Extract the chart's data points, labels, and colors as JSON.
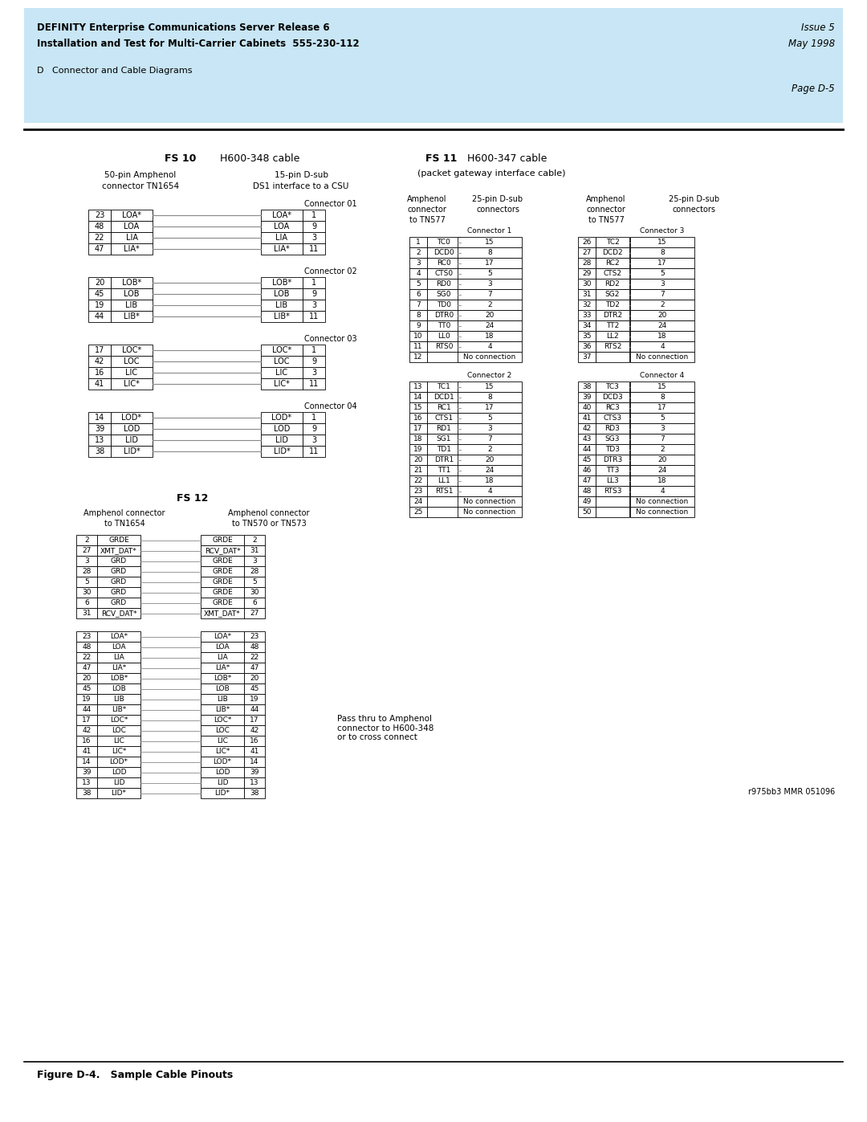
{
  "page_title1": "DEFINITY Enterprise Communications Server Release 6",
  "page_title2": "Installation and Test for Multi-Carrier Cabinets  555-230-112",
  "page_issue": "Issue 5",
  "page_date": "May 1998",
  "section": "D   Connector and Cable Diagrams",
  "page_num": "Page D-5",
  "figure_caption": "Figure D-4.   Sample Cable Pinouts",
  "ref_code": "r975bb3 MMR 051096",
  "header_bg": "#c8e6f5",
  "bg_color": "#ffffff",
  "fs10_title": "FS 10",
  "fs10_subtitle": " H600-348 cable",
  "fs10_left_label1": "50-pin Amphenol",
  "fs10_left_label2": "connector TN1654",
  "fs10_right_label1": "15-pin D-sub",
  "fs10_right_label2": "DS1 interface to a CSU",
  "fs10_conn01_label": "Connector 01",
  "fs10_conn02_label": "Connector 02",
  "fs10_conn03_label": "Connector 03",
  "fs10_conn04_label": "Connector 04",
  "fs10_conn01_rows": [
    [
      "LOA*",
      "1"
    ],
    [
      "LOA",
      "9"
    ],
    [
      "LIA",
      "3"
    ],
    [
      "LIA*",
      "11"
    ]
  ],
  "fs10_conn02_rows": [
    [
      "LOB*",
      "1"
    ],
    [
      "LOB",
      "9"
    ],
    [
      "LIB",
      "3"
    ],
    [
      "LIB*",
      "11"
    ]
  ],
  "fs10_conn03_rows": [
    [
      "LOC*",
      "1"
    ],
    [
      "LOC",
      "9"
    ],
    [
      "LIC",
      "3"
    ],
    [
      "LIC*",
      "11"
    ]
  ],
  "fs10_conn04_rows": [
    [
      "LOD*",
      "1"
    ],
    [
      "LOD",
      "9"
    ],
    [
      "LID",
      "3"
    ],
    [
      "LID*",
      "11"
    ]
  ],
  "fs10_left1_rows": [
    [
      "23",
      "LOA*"
    ],
    [
      "48",
      "LOA"
    ],
    [
      "22",
      "LIA"
    ],
    [
      "47",
      "LIA*"
    ]
  ],
  "fs10_left2_rows": [
    [
      "20",
      "LOB*"
    ],
    [
      "45",
      "LOB"
    ],
    [
      "19",
      "LIB"
    ],
    [
      "44",
      "LIB*"
    ]
  ],
  "fs10_left3_rows": [
    [
      "17",
      "LOC*"
    ],
    [
      "42",
      "LOC"
    ],
    [
      "16",
      "LIC"
    ],
    [
      "41",
      "LIC*"
    ]
  ],
  "fs10_left4_rows": [
    [
      "14",
      "LOD*"
    ],
    [
      "39",
      "LOD"
    ],
    [
      "13",
      "LID"
    ],
    [
      "38",
      "LID*"
    ]
  ],
  "fs11_title": "FS 11",
  "fs11_subtitle": " H600-347 cable",
  "fs11_subtitle2": "(packet gateway interface cable)",
  "fs11_left_label1": "Amphenol",
  "fs11_left_label2": "connector",
  "fs11_left_label3": "to TN577",
  "fs11_mid_label1": "25-pin D-sub",
  "fs11_mid_label2": "connectors",
  "fs11_right_label1": "Amphenol",
  "fs11_right_label2": "connector",
  "fs11_right_label3": "to TN577",
  "fs11_right2_label1": "25-pin D-sub",
  "fs11_right2_label2": "connectors",
  "fs11_conn1_label": "Connector 1",
  "fs11_conn2_label": "Connector 2",
  "fs11_conn3_label": "Connector 3",
  "fs11_conn4_label": "Connector 4",
  "fs11_left1_rows": [
    [
      "1",
      "TC0"
    ],
    [
      "2",
      "DCD0"
    ],
    [
      "3",
      "RC0"
    ],
    [
      "4",
      "CTS0"
    ],
    [
      "5",
      "RD0"
    ],
    [
      "6",
      "SG0"
    ],
    [
      "7",
      "TD0"
    ],
    [
      "8",
      "DTR0"
    ],
    [
      "9",
      "TT0"
    ],
    [
      "10",
      "LL0"
    ],
    [
      "11",
      "RTS0"
    ],
    [
      "12",
      ""
    ]
  ],
  "fs11_conn1_rows": [
    [
      "15"
    ],
    [
      "8"
    ],
    [
      "17"
    ],
    [
      "5"
    ],
    [
      "3"
    ],
    [
      "7"
    ],
    [
      "2"
    ],
    [
      "20"
    ],
    [
      "24"
    ],
    [
      "18"
    ],
    [
      "4"
    ],
    [
      "No connection"
    ]
  ],
  "fs11_left2_rows": [
    [
      "13",
      "TC1"
    ],
    [
      "14",
      "DCD1"
    ],
    [
      "15",
      "RC1"
    ],
    [
      "16",
      "CTS1"
    ],
    [
      "17",
      "RD1"
    ],
    [
      "18",
      "SG1"
    ],
    [
      "19",
      "TD1"
    ],
    [
      "20",
      "DTR1"
    ],
    [
      "21",
      "TT1"
    ],
    [
      "22",
      "LL1"
    ],
    [
      "23",
      "RTS1"
    ],
    [
      "24",
      ""
    ],
    [
      "25",
      ""
    ]
  ],
  "fs11_conn2_rows": [
    [
      "15"
    ],
    [
      "8"
    ],
    [
      "17"
    ],
    [
      "5"
    ],
    [
      "3"
    ],
    [
      "7"
    ],
    [
      "2"
    ],
    [
      "20"
    ],
    [
      "24"
    ],
    [
      "18"
    ],
    [
      "4"
    ],
    [
      "No connection"
    ],
    [
      "No connection"
    ]
  ],
  "fs11_mid1_rows": [
    [
      "26",
      "TC2"
    ],
    [
      "27",
      "DCD2"
    ],
    [
      "28",
      "RC2"
    ],
    [
      "29",
      "CTS2"
    ],
    [
      "30",
      "RD2"
    ],
    [
      "31",
      "SG2"
    ],
    [
      "32",
      "TD2"
    ],
    [
      "33",
      "DTR2"
    ],
    [
      "34",
      "TT2"
    ],
    [
      "35",
      "LL2"
    ],
    [
      "36",
      "RTS2"
    ],
    [
      "37",
      ""
    ]
  ],
  "fs11_conn3_rows": [
    [
      "15"
    ],
    [
      "8"
    ],
    [
      "17"
    ],
    [
      "5"
    ],
    [
      "3"
    ],
    [
      "7"
    ],
    [
      "2"
    ],
    [
      "20"
    ],
    [
      "24"
    ],
    [
      "18"
    ],
    [
      "4"
    ],
    [
      "No connection"
    ]
  ],
  "fs11_mid2_rows": [
    [
      "38",
      "TC3"
    ],
    [
      "39",
      "DCD3"
    ],
    [
      "40",
      "RC3"
    ],
    [
      "41",
      "CTS3"
    ],
    [
      "42",
      "RD3"
    ],
    [
      "43",
      "SG3"
    ],
    [
      "44",
      "TD3"
    ],
    [
      "45",
      "DTR3"
    ],
    [
      "46",
      "TT3"
    ],
    [
      "47",
      "LL3"
    ],
    [
      "48",
      "RTS3"
    ],
    [
      "49",
      ""
    ],
    [
      "50",
      ""
    ]
  ],
  "fs11_conn4_rows": [
    [
      "15"
    ],
    [
      "8"
    ],
    [
      "17"
    ],
    [
      "5"
    ],
    [
      "3"
    ],
    [
      "7"
    ],
    [
      "2"
    ],
    [
      "20"
    ],
    [
      "24"
    ],
    [
      "18"
    ],
    [
      "4"
    ],
    [
      "No connection"
    ],
    [
      "No connection"
    ]
  ],
  "fs12_title": "FS 12",
  "fs12_left_label1": "Amphenol connector",
  "fs12_left_label2": "to TN1654",
  "fs12_right_label1": "Amphenol connector",
  "fs12_right_label2": "to TN570 or TN573",
  "fs12_grp1_left": [
    [
      "2",
      "GRDE"
    ],
    [
      "27",
      "XMT_DAT*"
    ],
    [
      "3",
      "GRD"
    ],
    [
      "28",
      "GRD"
    ],
    [
      "5",
      "GRD"
    ],
    [
      "30",
      "GRD"
    ],
    [
      "6",
      "GRD"
    ],
    [
      "31",
      "RCV_DAT*"
    ]
  ],
  "fs12_grp1_right": [
    [
      "GRDE",
      "2"
    ],
    [
      "RCV_DAT*",
      "31"
    ],
    [
      "GRDE",
      "3"
    ],
    [
      "GRDE",
      "28"
    ],
    [
      "GRDE",
      "5"
    ],
    [
      "GRDE",
      "30"
    ],
    [
      "GRDE",
      "6"
    ],
    [
      "XMT_DAT*",
      "27"
    ]
  ],
  "fs12_grp2_left": [
    [
      "23",
      "LOA*"
    ],
    [
      "48",
      "LOA"
    ],
    [
      "22",
      "LIA"
    ],
    [
      "47",
      "LIA*"
    ],
    [
      "20",
      "LOB*"
    ],
    [
      "45",
      "LOB"
    ],
    [
      "19",
      "LIB"
    ],
    [
      "44",
      "LIB*"
    ],
    [
      "17",
      "LOC*"
    ],
    [
      "42",
      "LOC"
    ],
    [
      "16",
      "LIC"
    ],
    [
      "41",
      "LIC*"
    ],
    [
      "14",
      "LOD*"
    ],
    [
      "39",
      "LOD"
    ],
    [
      "13",
      "LID"
    ],
    [
      "38",
      "LID*"
    ]
  ],
  "fs12_grp2_right": [
    [
      "LOA*",
      "23"
    ],
    [
      "LOA",
      "48"
    ],
    [
      "LIA",
      "22"
    ],
    [
      "LIA*",
      "47"
    ],
    [
      "LOB*",
      "20"
    ],
    [
      "LOB",
      "45"
    ],
    [
      "LIB",
      "19"
    ],
    [
      "LIB*",
      "44"
    ],
    [
      "LOC*",
      "17"
    ],
    [
      "LOC",
      "42"
    ],
    [
      "LIC",
      "16"
    ],
    [
      "LIC*",
      "41"
    ],
    [
      "LOD*",
      "14"
    ],
    [
      "LOD",
      "39"
    ],
    [
      "LID",
      "13"
    ],
    [
      "LID*",
      "38"
    ]
  ],
  "fs12_passthru_note": "Pass thru to Amphenol\nconnector to H600-348\nor to cross connect"
}
